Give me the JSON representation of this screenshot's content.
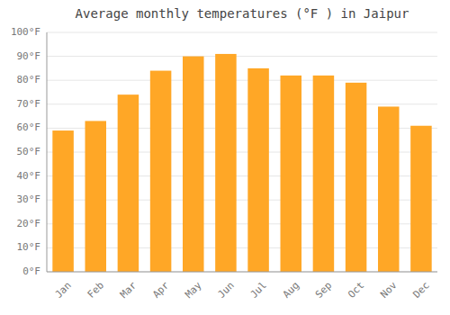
{
  "chart_data": {
    "type": "bar",
    "title": "Average monthly temperatures (°F ) in Jaipur",
    "categories": [
      "Jan",
      "Feb",
      "Mar",
      "Apr",
      "May",
      "Jun",
      "Jul",
      "Aug",
      "Sep",
      "Oct",
      "Nov",
      "Dec"
    ],
    "values": [
      59,
      63,
      74,
      84,
      90,
      91,
      85,
      82,
      82,
      79,
      69,
      61
    ],
    "color": "#FFA726",
    "ylim": [
      0,
      100
    ],
    "yticks": [
      {
        "value": 0,
        "label": "0°F"
      },
      {
        "value": 10,
        "label": "10°F"
      },
      {
        "value": 20,
        "label": "20°F"
      },
      {
        "value": 30,
        "label": "30°F"
      },
      {
        "value": 40,
        "label": "40°F"
      },
      {
        "value": 50,
        "label": "50°F"
      },
      {
        "value": 60,
        "label": "60°F"
      },
      {
        "value": 70,
        "label": "70°F"
      },
      {
        "value": 80,
        "label": "80°F"
      },
      {
        "value": 90,
        "label": "90°F"
      },
      {
        "value": 100,
        "label": "100°F"
      }
    ],
    "grid": true
  }
}
